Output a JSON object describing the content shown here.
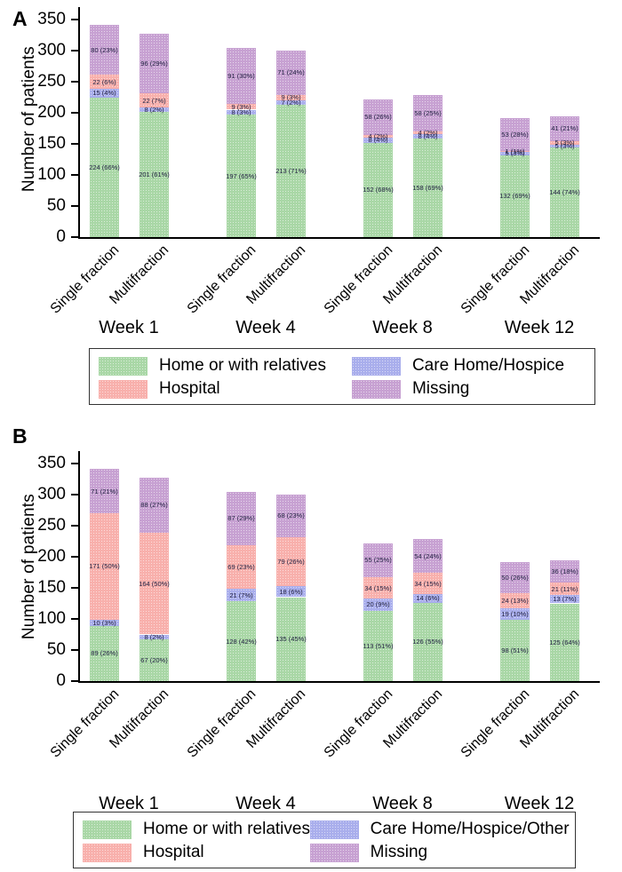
{
  "colors": {
    "home": "#a9d7a6",
    "hospital": "#f8b0ac",
    "care": "#a9aeec",
    "missing": "#c7a1d2",
    "bar_label_text": "#202040",
    "axis": "#000000"
  },
  "chart_data": [
    {
      "type": "bar",
      "stacked": true,
      "panel_label": "A",
      "ylabel": "Number of patients",
      "ylim": [
        0,
        350
      ],
      "yticks": [
        0,
        50,
        100,
        150,
        200,
        250,
        300,
        350
      ],
      "grid": false,
      "legend_position": "bottom-box",
      "stack_order_bottom_to_top": [
        "home",
        "care",
        "hospital",
        "missing"
      ],
      "legend": [
        {
          "key": "home",
          "label": "Home or with relatives"
        },
        {
          "key": "hospital",
          "label": "Hospital"
        },
        {
          "key": "care",
          "label": "Care Home/Hospice"
        },
        {
          "key": "missing",
          "label": "Missing"
        }
      ],
      "categories": [
        "Week 1",
        "Week 4",
        "Week 8",
        "Week 12"
      ],
      "bar_types": [
        "Single fraction",
        "Multifraction"
      ],
      "groups": [
        {
          "week": "Week 1",
          "bars": [
            {
              "fraction": "Single fraction",
              "segments": [
                {
                  "key": "home",
                  "n": 224,
                  "pct": 66
                },
                {
                  "key": "care",
                  "n": 15,
                  "pct": 4
                },
                {
                  "key": "hospital",
                  "n": 22,
                  "pct": 6
                },
                {
                  "key": "missing",
                  "n": 80,
                  "pct": 23
                }
              ]
            },
            {
              "fraction": "Multifraction",
              "segments": [
                {
                  "key": "home",
                  "n": 201,
                  "pct": 61
                },
                {
                  "key": "care",
                  "n": 8,
                  "pct": 2
                },
                {
                  "key": "hospital",
                  "n": 22,
                  "pct": 7
                },
                {
                  "key": "missing",
                  "n": 96,
                  "pct": 29
                }
              ]
            }
          ]
        },
        {
          "week": "Week 4",
          "bars": [
            {
              "fraction": "Single fraction",
              "segments": [
                {
                  "key": "home",
                  "n": 197,
                  "pct": 65
                },
                {
                  "key": "care",
                  "n": 8,
                  "pct": 3
                },
                {
                  "key": "hospital",
                  "n": 9,
                  "pct": 3
                },
                {
                  "key": "missing",
                  "n": 91,
                  "pct": 30
                }
              ]
            },
            {
              "fraction": "Multifraction",
              "segments": [
                {
                  "key": "home",
                  "n": 213,
                  "pct": 71
                },
                {
                  "key": "care",
                  "n": 7,
                  "pct": 2
                },
                {
                  "key": "hospital",
                  "n": 9,
                  "pct": 3
                },
                {
                  "key": "missing",
                  "n": 71,
                  "pct": 24
                }
              ]
            }
          ]
        },
        {
          "week": "Week 8",
          "bars": [
            {
              "fraction": "Single fraction",
              "segments": [
                {
                  "key": "home",
                  "n": 152,
                  "pct": 68
                },
                {
                  "key": "care",
                  "n": 8,
                  "pct": 4
                },
                {
                  "key": "hospital",
                  "n": 4,
                  "pct": 2
                },
                {
                  "key": "missing",
                  "n": 58,
                  "pct": 26
                }
              ]
            },
            {
              "fraction": "Multifraction",
              "segments": [
                {
                  "key": "home",
                  "n": 158,
                  "pct": 69
                },
                {
                  "key": "care",
                  "n": 8,
                  "pct": 4
                },
                {
                  "key": "hospital",
                  "n": 4,
                  "pct": 2
                },
                {
                  "key": "missing",
                  "n": 58,
                  "pct": 25
                }
              ]
            }
          ]
        },
        {
          "week": "Week 12",
          "bars": [
            {
              "fraction": "Single fraction",
              "segments": [
                {
                  "key": "home",
                  "n": 132,
                  "pct": 69
                },
                {
                  "key": "care",
                  "n": 5,
                  "pct": 3
                },
                {
                  "key": "hospital",
                  "n": 1,
                  "pct": 1
                },
                {
                  "key": "missing",
                  "n": 53,
                  "pct": 28
                }
              ]
            },
            {
              "fraction": "Multifraction",
              "segments": [
                {
                  "key": "home",
                  "n": 144,
                  "pct": 74
                },
                {
                  "key": "care",
                  "n": 5,
                  "pct": 3
                },
                {
                  "key": "hospital",
                  "n": 5,
                  "pct": 3
                },
                {
                  "key": "missing",
                  "n": 41,
                  "pct": 21
                }
              ]
            }
          ]
        }
      ]
    },
    {
      "type": "bar",
      "stacked": true,
      "panel_label": "B",
      "ylabel": "Number of patients",
      "ylim": [
        0,
        350
      ],
      "yticks": [
        0,
        50,
        100,
        150,
        200,
        250,
        300,
        350
      ],
      "grid": false,
      "legend_position": "bottom-box",
      "stack_order_bottom_to_top": [
        "home",
        "care",
        "hospital",
        "missing"
      ],
      "legend": [
        {
          "key": "home",
          "label": "Home or with relatives"
        },
        {
          "key": "hospital",
          "label": "Hospital"
        },
        {
          "key": "care",
          "label": "Care Home/Hospice/Other"
        },
        {
          "key": "missing",
          "label": "Missing"
        }
      ],
      "categories": [
        "Week 1",
        "Week 4",
        "Week 8",
        "Week 12"
      ],
      "bar_types": [
        "Single fraction",
        "Multifraction"
      ],
      "groups": [
        {
          "week": "Week 1",
          "bars": [
            {
              "fraction": "Single fraction",
              "segments": [
                {
                  "key": "home",
                  "n": 89,
                  "pct": 26
                },
                {
                  "key": "care",
                  "n": 10,
                  "pct": 3
                },
                {
                  "key": "hospital",
                  "n": 171,
                  "pct": 50
                },
                {
                  "key": "missing",
                  "n": 71,
                  "pct": 21
                }
              ]
            },
            {
              "fraction": "Multifraction",
              "segments": [
                {
                  "key": "home",
                  "n": 67,
                  "pct": 20
                },
                {
                  "key": "care",
                  "n": 8,
                  "pct": 2
                },
                {
                  "key": "hospital",
                  "n": 164,
                  "pct": 50
                },
                {
                  "key": "missing",
                  "n": 88,
                  "pct": 27
                }
              ]
            }
          ]
        },
        {
          "week": "Week 4",
          "bars": [
            {
              "fraction": "Single fraction",
              "segments": [
                {
                  "key": "home",
                  "n": 128,
                  "pct": 42
                },
                {
                  "key": "care",
                  "n": 21,
                  "pct": 7
                },
                {
                  "key": "hospital",
                  "n": 69,
                  "pct": 23
                },
                {
                  "key": "missing",
                  "n": 87,
                  "pct": 29
                }
              ]
            },
            {
              "fraction": "Multifraction",
              "segments": [
                {
                  "key": "home",
                  "n": 135,
                  "pct": 45
                },
                {
                  "key": "care",
                  "n": 18,
                  "pct": 6
                },
                {
                  "key": "hospital",
                  "n": 79,
                  "pct": 26
                },
                {
                  "key": "missing",
                  "n": 68,
                  "pct": 23
                }
              ]
            }
          ]
        },
        {
          "week": "Week 8",
          "bars": [
            {
              "fraction": "Single fraction",
              "segments": [
                {
                  "key": "home",
                  "n": 113,
                  "pct": 51
                },
                {
                  "key": "care",
                  "n": 20,
                  "pct": 9
                },
                {
                  "key": "hospital",
                  "n": 34,
                  "pct": 15
                },
                {
                  "key": "missing",
                  "n": 55,
                  "pct": 25
                }
              ]
            },
            {
              "fraction": "Multifraction",
              "segments": [
                {
                  "key": "home",
                  "n": 126,
                  "pct": 55
                },
                {
                  "key": "care",
                  "n": 14,
                  "pct": 6
                },
                {
                  "key": "hospital",
                  "n": 34,
                  "pct": 15
                },
                {
                  "key": "missing",
                  "n": 54,
                  "pct": 24
                }
              ]
            }
          ]
        },
        {
          "week": "Week 12",
          "bars": [
            {
              "fraction": "Single fraction",
              "segments": [
                {
                  "key": "home",
                  "n": 98,
                  "pct": 51
                },
                {
                  "key": "care",
                  "n": 19,
                  "pct": 10
                },
                {
                  "key": "hospital",
                  "n": 24,
                  "pct": 13
                },
                {
                  "key": "missing",
                  "n": 50,
                  "pct": 26
                }
              ]
            },
            {
              "fraction": "Multifraction",
              "segments": [
                {
                  "key": "home",
                  "n": 125,
                  "pct": 64
                },
                {
                  "key": "care",
                  "n": 13,
                  "pct": 7
                },
                {
                  "key": "hospital",
                  "n": 21,
                  "pct": 11
                },
                {
                  "key": "missing",
                  "n": 36,
                  "pct": 18
                }
              ]
            }
          ]
        }
      ]
    }
  ]
}
